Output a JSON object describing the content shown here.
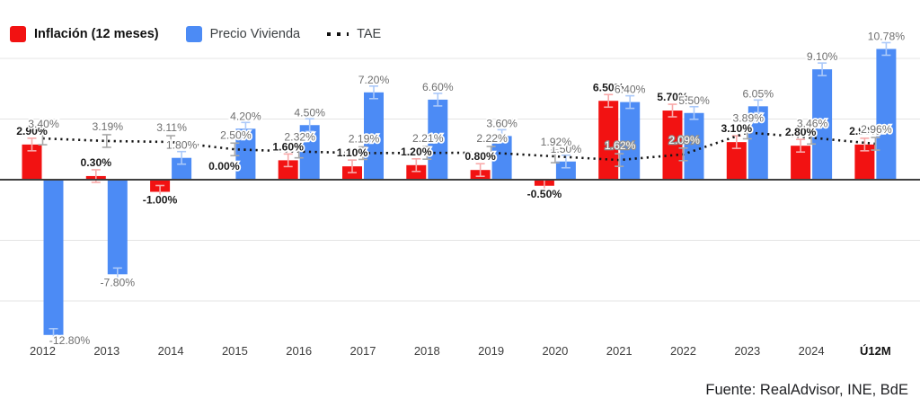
{
  "legend": {
    "items": [
      {
        "label": "Inflación (12 meses)",
        "color": "#f21212",
        "bold": true,
        "swatch": "square"
      },
      {
        "label": "Precio Vivienda",
        "color": "#4c8bf5",
        "bold": false,
        "swatch": "square"
      },
      {
        "label": "TAE",
        "color": "#111111",
        "bold": false,
        "swatch": "dotted-line"
      }
    ]
  },
  "footer": {
    "source": "Fuente: RealAdvisor, INE, BdE"
  },
  "chart_data": {
    "type": "bar",
    "subtype": "grouped bars + dotted line overlay",
    "title": "",
    "xlabel": "",
    "ylabel": "",
    "ylim": [
      -15,
      12.5
    ],
    "grid": true,
    "gridline_values": [
      15,
      10,
      5,
      0,
      -5,
      -10
    ],
    "legend_position": "top-left",
    "categories": [
      "2012",
      "2013",
      "2014",
      "2015",
      "2016",
      "2017",
      "2018",
      "2019",
      "2020",
      "2021",
      "2022",
      "2023",
      "2024",
      "Ú12M"
    ],
    "series": [
      {
        "name": "Inflación (12 meses)",
        "type": "bar",
        "color": "#f21212",
        "error_color": "#f8a9a9",
        "values": [
          2.9,
          0.3,
          -1.0,
          0.0,
          1.6,
          1.1,
          1.2,
          0.8,
          -0.5,
          6.5,
          5.7,
          3.1,
          2.8,
          2.9
        ],
        "labels": [
          "2.90%",
          "0.30%",
          "-1.00%",
          "0.00%",
          "1.60%",
          "1.10%",
          "1.20%",
          "0.80%",
          "-0.50%",
          "6.50%",
          "5.70%",
          "3.10%",
          "2.80%",
          "2.90%"
        ]
      },
      {
        "name": "Precio Vivienda",
        "type": "bar",
        "color": "#4c8bf5",
        "error_color": "#abc9f9",
        "values": [
          -12.8,
          -7.8,
          1.8,
          4.2,
          4.5,
          7.2,
          6.6,
          3.6,
          1.5,
          6.4,
          5.5,
          6.05,
          9.1,
          10.78
        ],
        "labels": [
          "-12.80%",
          "-7.80%",
          "1.80%",
          "4.20%",
          "4.50%",
          "7.20%",
          "6.60%",
          "3.60%",
          "1.50%",
          "6.40%",
          "5.50%",
          "6.05%",
          "9.10%",
          "10.78%"
        ]
      },
      {
        "name": "TAE",
        "type": "line",
        "style": "dotted",
        "color": "#161616",
        "error_color": "#a8a8a8",
        "values": [
          3.4,
          3.19,
          3.11,
          2.5,
          2.32,
          2.19,
          2.21,
          2.22,
          1.92,
          1.62,
          2.09,
          3.89,
          3.46,
          2.96
        ],
        "labels": [
          "3.40%",
          "3.19%",
          "3.11%",
          "2.50%",
          "2.32%",
          "2.19%",
          "2.21%",
          "2.22%",
          "1.92%",
          "1.62%",
          "2.09%",
          "3.89%",
          "3.46%",
          "2.96%"
        ]
      }
    ]
  }
}
